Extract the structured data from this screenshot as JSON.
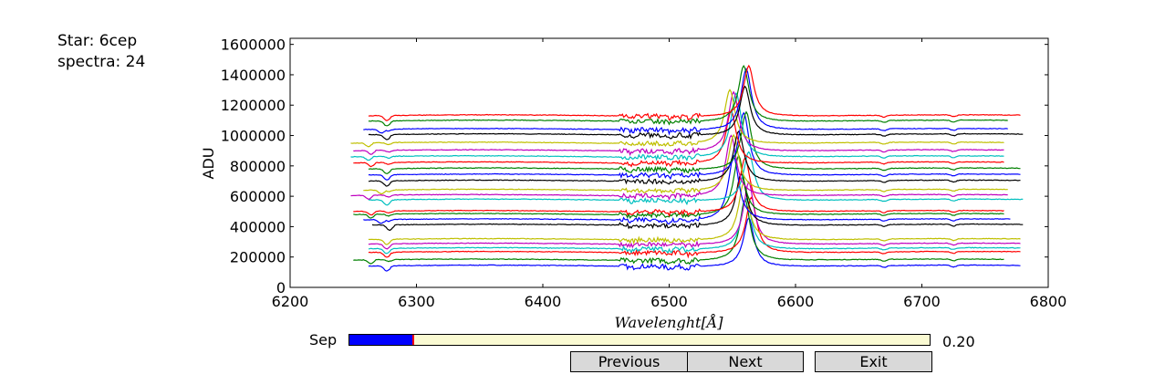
{
  "info": {
    "star_text": "Star: 6cep",
    "spectra_text": "spectra: 24"
  },
  "slider": {
    "label": "Sep",
    "value_text": "0.20",
    "fraction": 0.11
  },
  "buttons": {
    "previous": "Previous",
    "next": "Next",
    "exit": "Exit"
  },
  "colors": {
    "cycle": [
      "#0000ff",
      "#008000",
      "#ff0000",
      "#00bfbf",
      "#bf00bf",
      "#bfbf00",
      "#000000"
    ],
    "slider_fill": "#0000ff",
    "slider_track": "#fafad2",
    "slider_handle": "#ff0000",
    "button_bg": "#d9d9d9"
  },
  "chart_data": {
    "type": "line",
    "xlabel": "Wavelenght[Å]",
    "ylabel": "ADU",
    "xlim": [
      6200,
      6800
    ],
    "ylim": [
      0,
      1640000
    ],
    "xticks": [
      "6200",
      "6300",
      "6400",
      "6500",
      "6600",
      "6700",
      "6800"
    ],
    "yticks": [
      "0",
      "200000",
      "400000",
      "600000",
      "800000",
      "1000000",
      "1200000",
      "1400000",
      "1600000"
    ],
    "grid": false,
    "legend": "none",
    "series_count": 24,
    "spectrum_shape": {
      "h_alpha_peak_wavelength": 6563,
      "peak_height": 380000,
      "peak_width": 5,
      "absorption_bands": [
        6278,
        6470,
        6500,
        6515,
        6670,
        6725
      ]
    },
    "series": [
      {
        "baseline": 140000,
        "color": "#0000ff",
        "start": 6262,
        "end": 6778,
        "shift": 0
      },
      {
        "baseline": 180000,
        "color": "#008000",
        "start": 6250,
        "end": 6765,
        "shift": -3
      },
      {
        "baseline": 230000,
        "color": "#ff0000",
        "start": 6262,
        "end": 6778,
        "shift": 2
      },
      {
        "baseline": 255000,
        "color": "#00bfbf",
        "start": 6262,
        "end": 6778,
        "shift": -2
      },
      {
        "baseline": 285000,
        "color": "#bf00bf",
        "start": 6262,
        "end": 6778,
        "shift": 0
      },
      {
        "baseline": 315000,
        "color": "#bfbf00",
        "start": 6262,
        "end": 6778,
        "shift": -4
      },
      {
        "baseline": 410000,
        "color": "#000000",
        "start": 6265,
        "end": 6780,
        "shift": -6
      },
      {
        "baseline": 445000,
        "color": "#0000ff",
        "start": 6258,
        "end": 6770,
        "shift": -12
      },
      {
        "baseline": 480000,
        "color": "#008000",
        "start": 6250,
        "end": 6765,
        "shift": -8
      },
      {
        "baseline": 500000,
        "color": "#ff0000",
        "start": 6250,
        "end": 6765,
        "shift": -3
      },
      {
        "baseline": 575000,
        "color": "#00bfbf",
        "start": 6262,
        "end": 6780,
        "shift": 0
      },
      {
        "baseline": 605000,
        "color": "#bf00bf",
        "start": 6248,
        "end": 6768,
        "shift": -14
      },
      {
        "baseline": 640000,
        "color": "#bfbf00",
        "start": 6258,
        "end": 6768,
        "shift": -12
      },
      {
        "baseline": 700000,
        "color": "#000000",
        "start": 6262,
        "end": 6778,
        "shift": -8
      },
      {
        "baseline": 740000,
        "color": "#0000ff",
        "start": 6262,
        "end": 6778,
        "shift": -4
      },
      {
        "baseline": 780000,
        "color": "#008000",
        "start": 6262,
        "end": 6778,
        "shift": -2
      },
      {
        "baseline": 820000,
        "color": "#ff0000",
        "start": 6250,
        "end": 6765,
        "shift": -14
      },
      {
        "baseline": 860000,
        "color": "#00bfbf",
        "start": 6248,
        "end": 6765,
        "shift": -10
      },
      {
        "baseline": 900000,
        "color": "#bf00bf",
        "start": 6250,
        "end": 6765,
        "shift": -12
      },
      {
        "baseline": 950000,
        "color": "#bfbf00",
        "start": 6248,
        "end": 6765,
        "shift": -15
      },
      {
        "baseline": 1005000,
        "color": "#000000",
        "start": 6262,
        "end": 6780,
        "shift": -3
      },
      {
        "baseline": 1040000,
        "color": "#0000ff",
        "start": 6258,
        "end": 6768,
        "shift": -2
      },
      {
        "baseline": 1095000,
        "color": "#008000",
        "start": 6262,
        "end": 6768,
        "shift": -4
      },
      {
        "baseline": 1130000,
        "color": "#ff0000",
        "start": 6262,
        "end": 6778,
        "shift": 0
      }
    ]
  }
}
